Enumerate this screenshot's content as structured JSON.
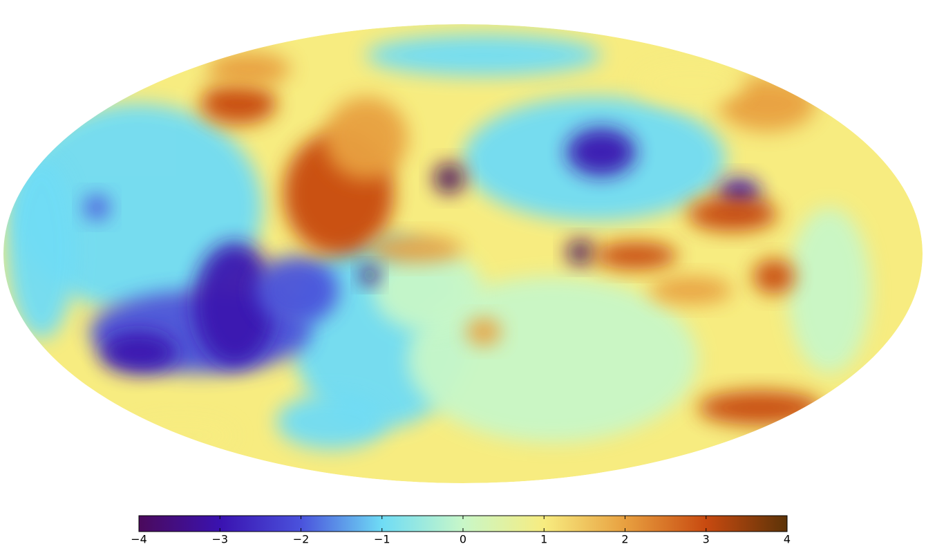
{
  "chart_data": {
    "type": "mollweide-map",
    "colorbar": {
      "clim": [
        -4,
        4
      ],
      "colors": [
        "#4b0a5c",
        "#3a12b0",
        "#4a52dc",
        "#6fdcf5",
        "#c8f7c8",
        "#f7ec80",
        "#e8a040",
        "#c84a10",
        "#5c3308"
      ],
      "ticks": [
        {
          "value": -4,
          "label": "−4"
        },
        {
          "value": -3,
          "label": "−3"
        },
        {
          "value": -2,
          "label": "−2"
        },
        {
          "value": -1,
          "label": "−1"
        },
        0,
        1,
        2,
        3,
        4
      ]
    }
  }
}
